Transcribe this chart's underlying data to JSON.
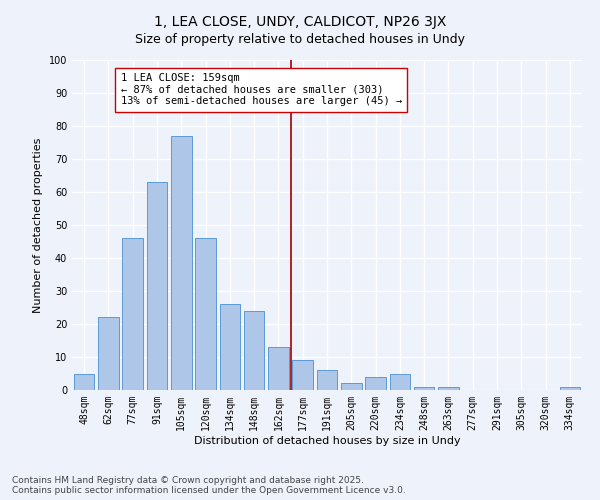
{
  "title": "1, LEA CLOSE, UNDY, CALDICOT, NP26 3JX",
  "subtitle": "Size of property relative to detached houses in Undy",
  "xlabel": "Distribution of detached houses by size in Undy",
  "ylabel": "Number of detached properties",
  "bar_labels": [
    "48sqm",
    "62sqm",
    "77sqm",
    "91sqm",
    "105sqm",
    "120sqm",
    "134sqm",
    "148sqm",
    "162sqm",
    "177sqm",
    "191sqm",
    "205sqm",
    "220sqm",
    "234sqm",
    "248sqm",
    "263sqm",
    "277sqm",
    "291sqm",
    "305sqm",
    "320sqm",
    "334sqm"
  ],
  "bar_values": [
    5,
    22,
    46,
    63,
    77,
    46,
    26,
    24,
    13,
    9,
    6,
    2,
    4,
    5,
    1,
    1,
    0,
    0,
    0,
    0,
    1
  ],
  "bar_color": "#aec6e8",
  "bar_edge_color": "#5b9bd5",
  "vline_x": 8.5,
  "vline_color": "#a00000",
  "annotation_text": "1 LEA CLOSE: 159sqm\n← 87% of detached houses are smaller (303)\n13% of semi-detached houses are larger (45) →",
  "annotation_box_color": "#ffffff",
  "annotation_box_edge": "#cc0000",
  "ylim": [
    0,
    100
  ],
  "yticks": [
    0,
    10,
    20,
    30,
    40,
    50,
    60,
    70,
    80,
    90,
    100
  ],
  "footnote": "Contains HM Land Registry data © Crown copyright and database right 2025.\nContains public sector information licensed under the Open Government Licence v3.0.",
  "bg_color": "#eef2fb",
  "grid_color": "#ffffff",
  "title_fontsize": 10,
  "subtitle_fontsize": 9,
  "axis_label_fontsize": 8,
  "tick_fontsize": 7,
  "annotation_fontsize": 7.5,
  "footnote_fontsize": 6.5
}
